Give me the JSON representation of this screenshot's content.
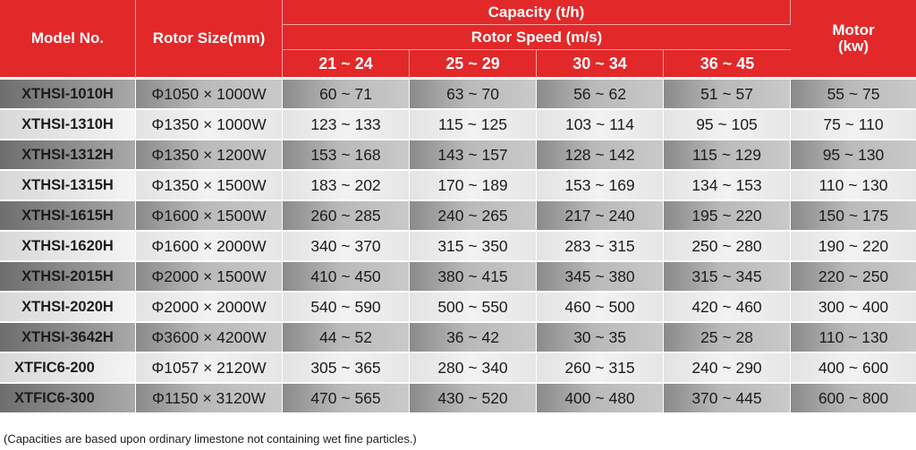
{
  "header": {
    "model": "Model No.",
    "rotor_size": "Rotor Size(mm)",
    "capacity": "Capacity (t/h)",
    "rotor_speed": "Rotor Speed (m/s)",
    "speeds": [
      "21 ~ 24",
      "25 ~ 29",
      "30 ~ 34",
      "36 ~ 45"
    ],
    "motor": "Motor (kw)"
  },
  "rows": [
    {
      "model": "XTHSI-1010H",
      "rotor": "Φ1050 × 1000W",
      "s1": "60 ~ 71",
      "s2": "63 ~ 70",
      "s3": "56 ~ 62",
      "s4": "51 ~ 57",
      "motor": "55 ~ 75"
    },
    {
      "model": "XTHSI-1310H",
      "rotor": "Φ1350 × 1000W",
      "s1": "123 ~ 133",
      "s2": "115 ~ 125",
      "s3": "103 ~ 114",
      "s4": "95 ~ 105",
      "motor": "75 ~ 110"
    },
    {
      "model": "XTHSI-1312H",
      "rotor": "Φ1350 × 1200W",
      "s1": "153 ~ 168",
      "s2": "143 ~ 157",
      "s3": "128 ~ 142",
      "s4": "115 ~ 129",
      "motor": "95 ~ 130"
    },
    {
      "model": "XTHSI-1315H",
      "rotor": "Φ1350 × 1500W",
      "s1": "183 ~ 202",
      "s2": "170 ~ 189",
      "s3": "153 ~ 169",
      "s4": "134 ~ 153",
      "motor": "110 ~ 130"
    },
    {
      "model": "XTHSI-1615H",
      "rotor": "Φ1600 × 1500W",
      "s1": "260 ~ 285",
      "s2": "240 ~ 265",
      "s3": "217 ~ 240",
      "s4": "195 ~ 220",
      "motor": "150 ~ 175"
    },
    {
      "model": "XTHSI-1620H",
      "rotor": "Φ1600 × 2000W",
      "s1": "340 ~ 370",
      "s2": "315 ~ 350",
      "s3": "283 ~ 315",
      "s4": "250 ~ 280",
      "motor": "190 ~ 220"
    },
    {
      "model": "XTHSI-2015H",
      "rotor": "Φ2000 × 1500W",
      "s1": "410 ~ 450",
      "s2": "380 ~ 415",
      "s3": "345 ~ 380",
      "s4": "315 ~ 345",
      "motor": "220 ~ 250"
    },
    {
      "model": "XTHSI-2020H",
      "rotor": "Φ2000 × 2000W",
      "s1": "540 ~ 590",
      "s2": "500 ~ 550",
      "s3": "460 ~ 500",
      "s4": "420 ~ 460",
      "motor": "300 ~ 400"
    },
    {
      "model": "XTHSI-3642H",
      "rotor": "Φ3600 × 4200W",
      "s1": "44 ~ 52",
      "s2": "36 ~ 42",
      "s3": "30 ~ 35",
      "s4": "25 ~ 28",
      "motor": "110 ~ 130"
    },
    {
      "model": "XTFIC6-200",
      "rotor": "Φ1057 × 2120W",
      "s1": "305 ~ 365",
      "s2": "280 ~ 340",
      "s3": "260 ~ 315",
      "s4": "240 ~ 290",
      "motor": "400 ~ 600"
    },
    {
      "model": "XTFIC6-300",
      "rotor": "Φ1150 × 3120W",
      "s1": "470 ~ 565",
      "s2": "430 ~ 520",
      "s3": "400 ~ 480",
      "s4": "370 ~ 445",
      "motor": "600 ~ 800"
    }
  ],
  "footnote": "(Capacities are based upon ordinary limestone not containing wet fine particles.)",
  "colors": {
    "header_red": "#e3282a",
    "dark_row": "#a8a8a8",
    "light_row": "#eeeeee"
  }
}
